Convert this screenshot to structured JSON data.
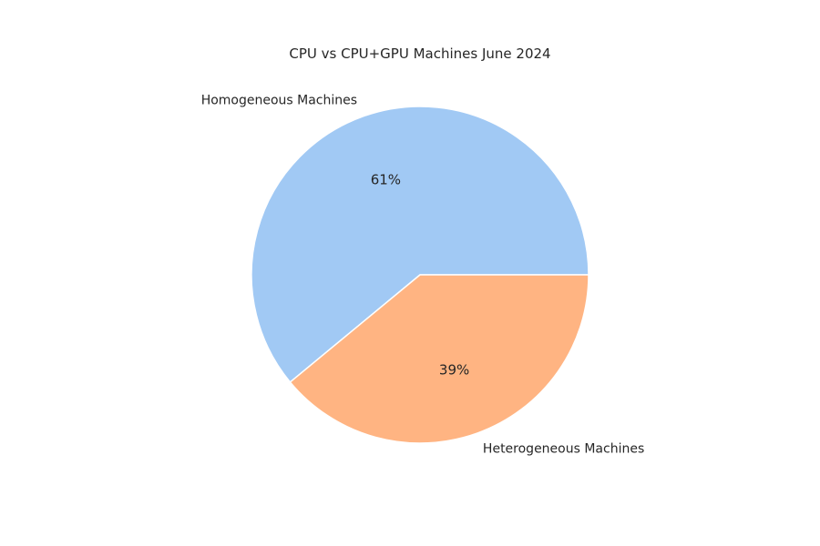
{
  "chart_data": {
    "type": "pie",
    "title": "CPU vs CPU+GPU Machines June 2024",
    "start_angle": "0 degrees (3 o'clock), counter-clockwise",
    "slices": [
      {
        "label": "Homogeneous Machines",
        "value": 61,
        "pct_label": "61%",
        "color": "#a1c9f4"
      },
      {
        "label": "Heterogeneous Machines",
        "value": 39,
        "pct_label": "39%",
        "color": "#ffb482"
      }
    ],
    "wedge_edge_color": "#ffffff",
    "legend": "none"
  }
}
